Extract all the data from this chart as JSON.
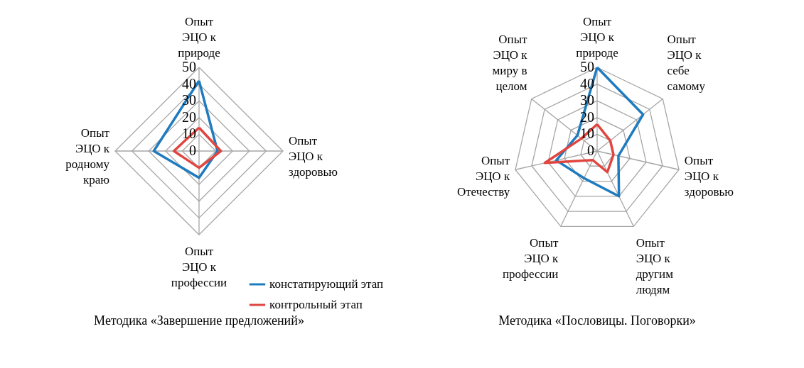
{
  "chart_data": [
    {
      "type": "radar",
      "title": "Методика «Завершение предложений»",
      "categories": [
        "Опыт ЭЦО к природе",
        "Опыт ЭЦО к здоровью",
        "Опыт ЭЦО к профессии",
        "Опыт ЭЦО к родному краю"
      ],
      "series": [
        {
          "name": "констатирующий этап",
          "color": "#1f7bbf",
          "values": [
            42,
            11,
            16,
            27
          ]
        },
        {
          "name": "контрольный этап",
          "color": "#e0453f",
          "values": [
            14,
            13,
            10,
            15
          ]
        }
      ],
      "ylim": [
        0,
        50
      ],
      "yticks": [
        0,
        10,
        20,
        30,
        40,
        50
      ],
      "grid": true,
      "legend": "bottom right",
      "marker": "none"
    },
    {
      "type": "radar",
      "title": "Методика «Пословицы. Поговорки»",
      "categories": [
        "Опыт ЭЦО к природе",
        "Опыт ЭЦО к себе самому",
        "Опыт ЭЦО к здоровью",
        "Опыт ЭЦО к другим людям",
        "Опыт ЭЦО к профессии",
        "Опыт ЭЦО к Отечеству",
        "Опыт ЭЦО к миру в целом"
      ],
      "series": [
        {
          "color": "#1f7bbf",
          "values": [
            50,
            35,
            13,
            30,
            18,
            25,
            15
          ]
        },
        {
          "color": "#e0453f",
          "values": [
            16,
            10,
            10,
            14,
            6,
            32,
            12
          ]
        }
      ],
      "ylim": [
        0,
        50
      ],
      "yticks": [
        0,
        10,
        20,
        30,
        40,
        50
      ],
      "grid": true,
      "legend": false,
      "marker": "none"
    }
  ]
}
